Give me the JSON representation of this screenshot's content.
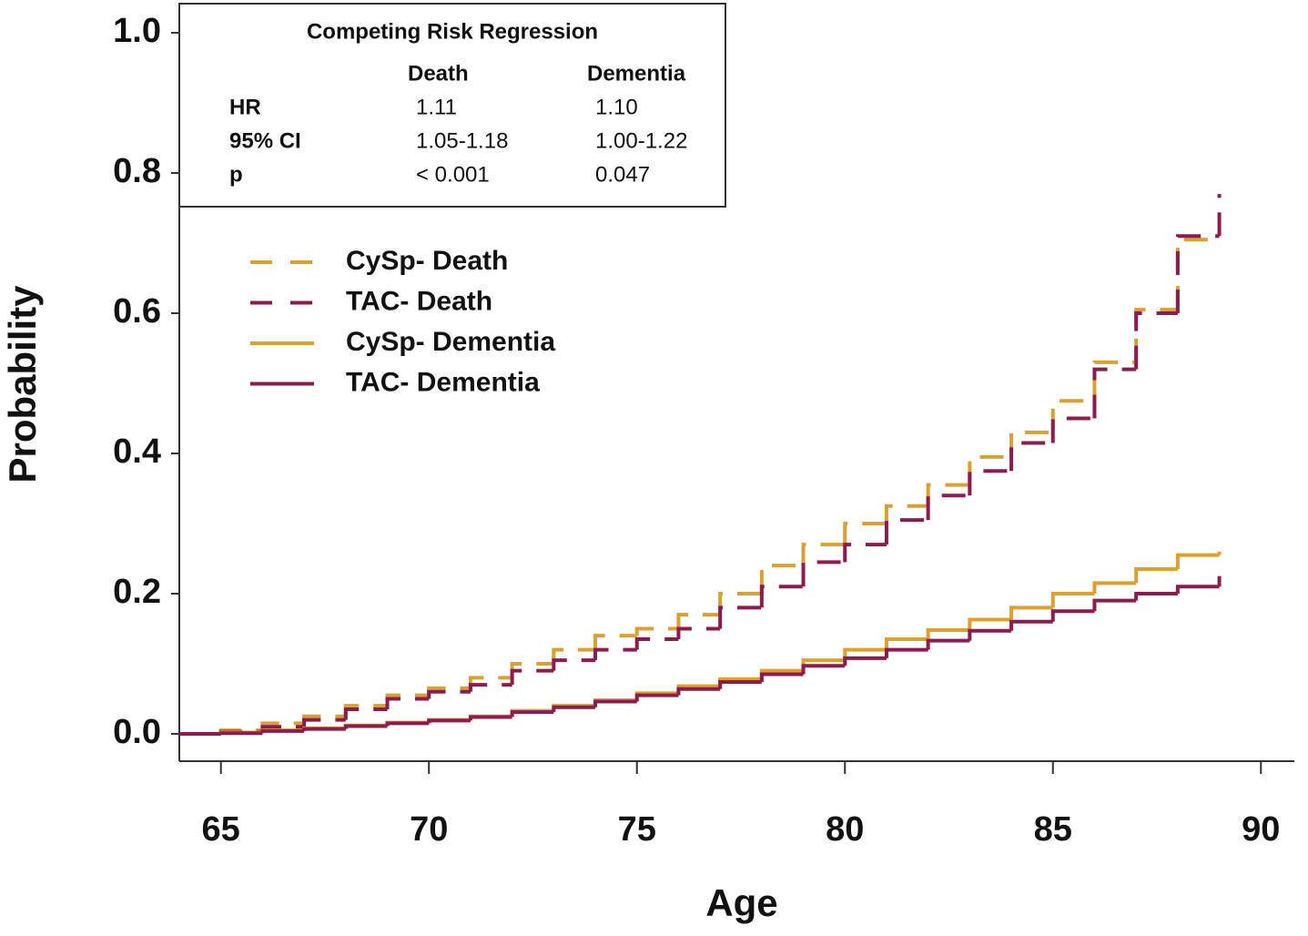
{
  "chart_data": {
    "type": "step",
    "x_label": "Age",
    "y_label": "Probability",
    "x": [
      64,
      65,
      66,
      67,
      68,
      69,
      70,
      71,
      72,
      73,
      74,
      75,
      76,
      77,
      78,
      79,
      80,
      81,
      82,
      83,
      84,
      85,
      86,
      87,
      88,
      89
    ],
    "series": [
      {
        "name": "CySp- Death",
        "color": "#d9a034",
        "dashed": true,
        "values": [
          0,
          0.005,
          0.015,
          0.025,
          0.04,
          0.055,
          0.065,
          0.08,
          0.1,
          0.12,
          0.14,
          0.15,
          0.17,
          0.2,
          0.24,
          0.27,
          0.3,
          0.325,
          0.355,
          0.395,
          0.43,
          0.475,
          0.53,
          0.605,
          0.705,
          0.705
        ]
      },
      {
        "name": "TAC- Death",
        "color": "#8c1c4f",
        "dashed": true,
        "values": [
          0,
          0.003,
          0.01,
          0.02,
          0.035,
          0.05,
          0.06,
          0.07,
          0.09,
          0.105,
          0.12,
          0.135,
          0.15,
          0.18,
          0.21,
          0.245,
          0.27,
          0.305,
          0.34,
          0.375,
          0.415,
          0.45,
          0.52,
          0.6,
          0.71,
          0.77
        ]
      },
      {
        "name": "CySp- Dementia",
        "color": "#dfa030",
        "dashed": false,
        "values": [
          0,
          0.002,
          0.005,
          0.008,
          0.012,
          0.016,
          0.02,
          0.025,
          0.033,
          0.04,
          0.048,
          0.058,
          0.068,
          0.078,
          0.09,
          0.105,
          0.12,
          0.135,
          0.148,
          0.163,
          0.18,
          0.2,
          0.215,
          0.235,
          0.255,
          0.26
        ]
      },
      {
        "name": "TAC- Dementia",
        "color": "#8c1c4f",
        "dashed": false,
        "values": [
          0,
          0.001,
          0.004,
          0.007,
          0.011,
          0.015,
          0.019,
          0.024,
          0.031,
          0.038,
          0.046,
          0.055,
          0.064,
          0.074,
          0.085,
          0.097,
          0.108,
          0.12,
          0.133,
          0.147,
          0.16,
          0.175,
          0.19,
          0.2,
          0.21,
          0.225
        ]
      }
    ],
    "xlim": [
      64,
      90.76
    ],
    "ylim": [
      -0.039,
      1.039
    ],
    "xticks": [
      65,
      70,
      75,
      80,
      85,
      90
    ],
    "yticks": [
      {
        "value": 0,
        "label": "0.0"
      },
      {
        "value": 0.2,
        "label": "0.2"
      },
      {
        "value": 0.4,
        "label": "0.4"
      },
      {
        "value": 0.6,
        "label": "0.6"
      },
      {
        "value": 0.8,
        "label": "0.8"
      },
      {
        "value": 1,
        "label": "1.0"
      }
    ],
    "stats_table": {
      "title": "Competing Risk Regression",
      "columns": [
        "Death",
        "Dementia"
      ],
      "rows": [
        {
          "label": "HR",
          "values": [
            "1.11",
            "1.10"
          ]
        },
        {
          "label": "95% CI",
          "values": [
            "1.05-1.18",
            "1.00-1.22"
          ]
        },
        {
          "label": "p",
          "values": [
            "< 0.001",
            "0.047"
          ]
        }
      ]
    }
  }
}
